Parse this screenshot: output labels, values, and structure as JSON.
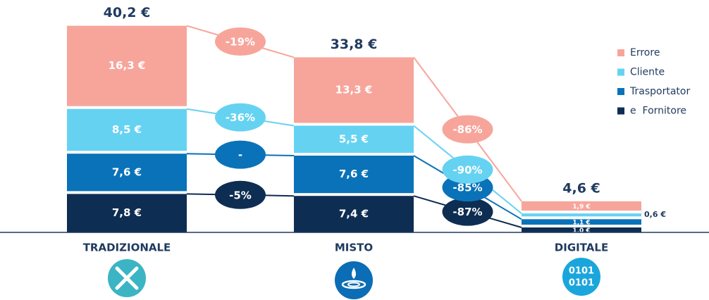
{
  "chart_data": {
    "type": "bar",
    "stacked": true,
    "categories": [
      "TRADIZIONALE",
      "MISTO",
      "DIGITALE"
    ],
    "totals": [
      40.2,
      33.8,
      4.6
    ],
    "total_labels": [
      "40,2 €",
      "33,8 €",
      "4,6 €"
    ],
    "series": [
      {
        "name": "e  Fornitore",
        "color": "#0e2d52",
        "values": [
          7.8,
          7.4,
          1.0
        ],
        "value_labels": [
          "7,8 €",
          "7,4 €",
          "1,0 €"
        ],
        "change_labels": [
          "-5%",
          "-87%"
        ]
      },
      {
        "name": "Trasportator",
        "color": "#0a72b8",
        "values": [
          7.6,
          7.6,
          1.1
        ],
        "value_labels": [
          "7,6 €",
          "7,6 €",
          "1,1 €"
        ],
        "change_labels": [
          "-",
          "-85%"
        ]
      },
      {
        "name": "Cliente",
        "color": "#66d2f2",
        "values": [
          8.5,
          5.5,
          0.6
        ],
        "value_labels": [
          "8,5 €",
          "5,5 €",
          "0,6 €"
        ],
        "change_labels": [
          "-36%",
          "-90%"
        ]
      },
      {
        "name": "Errore",
        "color": "#f7a59b",
        "values": [
          16.3,
          13.3,
          1.9
        ],
        "value_labels": [
          "16,3 €",
          "13,3 €",
          "1,9 €"
        ],
        "change_labels": [
          "-19%",
          "-86%"
        ]
      }
    ],
    "legend": "top-right"
  }
}
